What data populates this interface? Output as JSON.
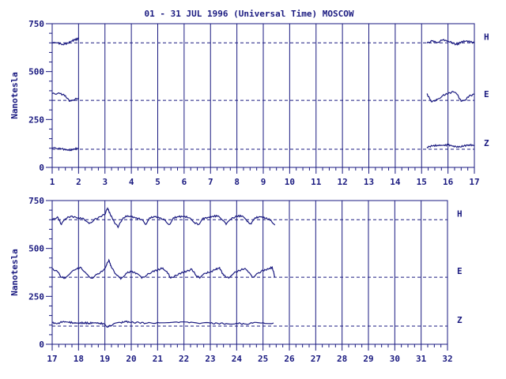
{
  "chart_data": {
    "title": "01 - 31 JUL 1996 (Universal Time) MOSCOW",
    "ylabel": "Nanotesla",
    "colors": {
      "axis": "#1a1a80",
      "trace": "#1a1a80"
    },
    "grid": "vertical day lines",
    "panels": [
      {
        "type": "line",
        "xlim": [
          1,
          17
        ],
        "ylim": [
          0,
          750
        ],
        "x_ticks": [
          "1",
          "2",
          "3",
          "4",
          "5",
          "6",
          "7",
          "8",
          "9",
          "10",
          "11",
          "12",
          "13",
          "14",
          "15",
          "16",
          "17"
        ],
        "y_ticks": [
          "0",
          "250",
          "500",
          "750"
        ],
        "baselines": [
          {
            "component": "H",
            "value": 650
          },
          {
            "component": "E",
            "value": 350
          },
          {
            "component": "Z",
            "value": 95
          }
        ],
        "series": [
          {
            "name": "H",
            "segments": [
              [
                [
                  1.0,
                  652
                ],
                [
                  1.2,
                  650
                ],
                [
                  1.4,
                  642
                ],
                [
                  1.6,
                  648
                ],
                [
                  1.75,
                  660
                ],
                [
                  1.85,
                  665
                ],
                [
                  2.0,
                  672
                ]
              ],
              [
                [
                  15.2,
                  648
                ],
                [
                  15.4,
                  660
                ],
                [
                  15.6,
                  652
                ],
                [
                  15.8,
                  665
                ],
                [
                  16.0,
                  660
                ],
                [
                  16.2,
                  648
                ],
                [
                  16.35,
                  640
                ],
                [
                  16.5,
                  655
                ],
                [
                  16.7,
                  660
                ],
                [
                  16.85,
                  655
                ],
                [
                  17.0,
                  650
                ]
              ]
            ]
          },
          {
            "name": "E",
            "segments": [
              [
                [
                  1.0,
                  385
                ],
                [
                  1.3,
                  385
                ],
                [
                  1.5,
                  375
                ],
                [
                  1.65,
                  345
                ],
                [
                  1.8,
                  352
                ],
                [
                  2.0,
                  362
                ]
              ],
              [
                [
                  15.2,
                  385
                ],
                [
                  15.3,
                  360
                ],
                [
                  15.4,
                  342
                ],
                [
                  15.6,
                  355
                ],
                [
                  15.8,
                  375
                ],
                [
                  16.0,
                  385
                ],
                [
                  16.2,
                  395
                ],
                [
                  16.35,
                  380
                ],
                [
                  16.5,
                  345
                ],
                [
                  16.65,
                  352
                ],
                [
                  16.8,
                  372
                ],
                [
                  17.0,
                  382
                ]
              ]
            ]
          },
          {
            "name": "Z",
            "segments": [
              [
                [
                  1.0,
                  100
                ],
                [
                  1.3,
                  100
                ],
                [
                  1.5,
                  92
                ],
                [
                  1.7,
                  90
                ],
                [
                  1.85,
                  97
                ],
                [
                  2.0,
                  98
                ]
              ],
              [
                [
                  15.2,
                  105
                ],
                [
                  15.4,
                  112
                ],
                [
                  15.6,
                  115
                ],
                [
                  15.8,
                  115
                ],
                [
                  16.0,
                  117
                ],
                [
                  16.2,
                  112
                ],
                [
                  16.4,
                  105
                ],
                [
                  16.6,
                  112
                ],
                [
                  16.8,
                  118
                ],
                [
                  17.0,
                  114
                ]
              ]
            ]
          }
        ]
      },
      {
        "type": "line",
        "xlim": [
          17,
          32
        ],
        "ylim": [
          0,
          750
        ],
        "x_ticks": [
          "17",
          "18",
          "19",
          "20",
          "21",
          "22",
          "23",
          "24",
          "25",
          "26",
          "27",
          "28",
          "29",
          "30",
          "31",
          "32"
        ],
        "y_ticks": [
          "0",
          "250",
          "500",
          "750"
        ],
        "baselines": [
          {
            "component": "H",
            "value": 650
          },
          {
            "component": "E",
            "value": 350
          },
          {
            "component": "Z",
            "value": 95
          }
        ],
        "series": [
          {
            "name": "H",
            "segments": [
              [
                [
                  17.0,
                  648
                ],
                [
                  17.2,
                  665
                ],
                [
                  17.35,
                  625
                ],
                [
                  17.5,
                  655
                ],
                [
                  17.7,
                  668
                ],
                [
                  18.0,
                  660
                ],
                [
                  18.2,
                  655
                ],
                [
                  18.4,
                  630
                ],
                [
                  18.6,
                  650
                ],
                [
                  18.8,
                  665
                ],
                [
                  19.0,
                  678
                ],
                [
                  19.1,
                  710
                ],
                [
                  19.2,
                  680
                ],
                [
                  19.35,
                  640
                ],
                [
                  19.5,
                  610
                ],
                [
                  19.65,
                  650
                ],
                [
                  19.8,
                  670
                ],
                [
                  20.0,
                  665
                ],
                [
                  20.2,
                  660
                ],
                [
                  20.4,
                  650
                ],
                [
                  20.55,
                  625
                ],
                [
                  20.7,
                  660
                ],
                [
                  20.9,
                  665
                ],
                [
                  21.1,
                  660
                ],
                [
                  21.3,
                  645
                ],
                [
                  21.45,
                  625
                ],
                [
                  21.6,
                  660
                ],
                [
                  21.8,
                  665
                ],
                [
                  22.0,
                  668
                ],
                [
                  22.2,
                  660
                ],
                [
                  22.4,
                  635
                ],
                [
                  22.55,
                  625
                ],
                [
                  22.7,
                  655
                ],
                [
                  22.9,
                  662
                ],
                [
                  23.1,
                  668
                ],
                [
                  23.3,
                  670
                ],
                [
                  23.45,
                  650
                ],
                [
                  23.6,
                  625
                ],
                [
                  23.8,
                  655
                ],
                [
                  24.0,
                  668
                ],
                [
                  24.2,
                  670
                ],
                [
                  24.4,
                  640
                ],
                [
                  24.55,
                  628
                ],
                [
                  24.7,
                  660
                ],
                [
                  24.9,
                  665
                ],
                [
                  25.1,
                  658
                ],
                [
                  25.3,
                  648
                ],
                [
                  25.45,
                  622
                ]
              ]
            ]
          },
          {
            "name": "E",
            "segments": [
              [
                [
                  17.0,
                  395
                ],
                [
                  17.2,
                  378
                ],
                [
                  17.35,
                  350
                ],
                [
                  17.5,
                  345
                ],
                [
                  17.7,
                  372
                ],
                [
                  17.9,
                  392
                ],
                [
                  18.1,
                  400
                ],
                [
                  18.3,
                  368
                ],
                [
                  18.5,
                  345
                ],
                [
                  18.7,
                  365
                ],
                [
                  18.9,
                  380
                ],
                [
                  19.05,
                  410
                ],
                [
                  19.15,
                  440
                ],
                [
                  19.25,
                  400
                ],
                [
                  19.45,
                  360
                ],
                [
                  19.6,
                  340
                ],
                [
                  19.8,
                  370
                ],
                [
                  20.0,
                  380
                ],
                [
                  20.2,
                  370
                ],
                [
                  20.4,
                  345
                ],
                [
                  20.6,
                  362
                ],
                [
                  20.8,
                  380
                ],
                [
                  21.0,
                  388
                ],
                [
                  21.2,
                  398
                ],
                [
                  21.35,
                  380
                ],
                [
                  21.5,
                  345
                ],
                [
                  21.7,
                  360
                ],
                [
                  21.9,
                  372
                ],
                [
                  22.1,
                  380
                ],
                [
                  22.3,
                  392
                ],
                [
                  22.45,
                  360
                ],
                [
                  22.6,
                  345
                ],
                [
                  22.8,
                  370
                ],
                [
                  23.0,
                  378
                ],
                [
                  23.2,
                  390
                ],
                [
                  23.35,
                  400
                ],
                [
                  23.5,
                  360
                ],
                [
                  23.7,
                  345
                ],
                [
                  23.9,
                  372
                ],
                [
                  24.1,
                  385
                ],
                [
                  24.3,
                  395
                ],
                [
                  24.45,
                  375
                ],
                [
                  24.6,
                  350
                ],
                [
                  24.8,
                  370
                ],
                [
                  25.0,
                  385
                ],
                [
                  25.2,
                  392
                ],
                [
                  25.35,
                  402
                ],
                [
                  25.45,
                  350
                ]
              ]
            ]
          },
          {
            "name": "Z",
            "segments": [
              [
                [
                  17.0,
                  112
                ],
                [
                  17.2,
                  108
                ],
                [
                  17.4,
                  118
                ],
                [
                  17.6,
                  116
                ],
                [
                  17.8,
                  112
                ],
                [
                  18.0,
                  110
                ],
                [
                  18.2,
                  112
                ],
                [
                  18.4,
                  110
                ],
                [
                  18.6,
                  112
                ],
                [
                  18.8,
                  110
                ],
                [
                  19.0,
                  105
                ],
                [
                  19.1,
                  90
                ],
                [
                  19.3,
                  103
                ],
                [
                  19.6,
                  113
                ],
                [
                  19.8,
                  118
                ],
                [
                  20.0,
                  114
                ],
                [
                  20.3,
                  113
                ],
                [
                  20.6,
                  110
                ],
                [
                  21.0,
                  114
                ],
                [
                  21.4,
                  113
                ],
                [
                  21.8,
                  113
                ],
                [
                  22.2,
                  112
                ],
                [
                  22.6,
                  108
                ],
                [
                  23.0,
                  110
                ],
                [
                  23.3,
                  108
                ],
                [
                  23.6,
                  108
                ],
                [
                  24.0,
                  110
                ],
                [
                  24.3,
                  106
                ],
                [
                  24.6,
                  110
                ],
                [
                  25.0,
                  112
                ],
                [
                  25.4,
                  111
                ]
              ]
            ]
          }
        ]
      }
    ]
  }
}
